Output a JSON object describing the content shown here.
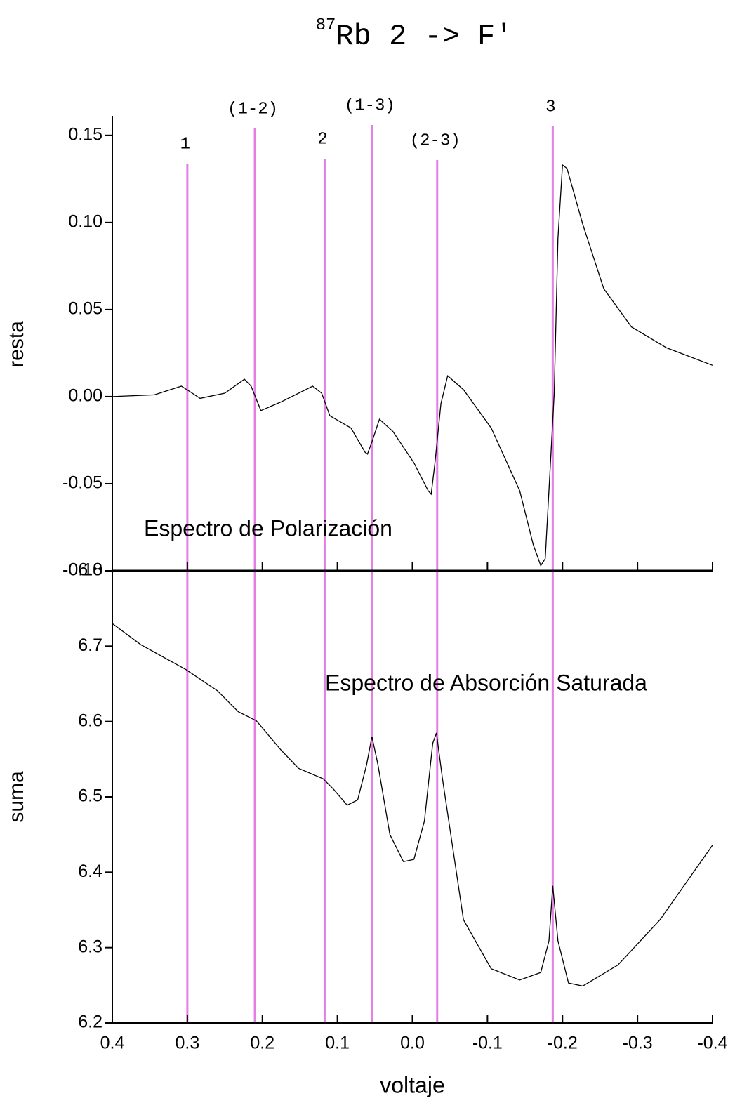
{
  "title_superscript": "87",
  "title": "Rb 2 -> F'",
  "vline_color": "#e57ee5",
  "vlines": [
    {
      "x": 0.3,
      "label": "1"
    },
    {
      "x": 0.21,
      "label": "(1-2)"
    },
    {
      "x": 0.117,
      "label": "2"
    },
    {
      "x": 0.054,
      "label": "(1-3)"
    },
    {
      "x": -0.033,
      "label": "(2-3)"
    },
    {
      "x": -0.187,
      "label": "3"
    }
  ],
  "chart_data": [
    {
      "type": "line",
      "ylabel": "resta",
      "annotation": "Espectro de Polarización",
      "color": "#000000",
      "xlim": [
        0.4,
        -0.4
      ],
      "ylim": [
        -0.1,
        0.16
      ],
      "yticks": [
        {
          "value": -0.1,
          "label": "-0.10"
        },
        -0.05,
        {
          "value": 0,
          "label": "0.00"
        },
        0.05,
        {
          "value": 0.1,
          "label": "0.10"
        },
        0.15
      ],
      "x": [
        0.4,
        0.344,
        0.308,
        0.297,
        0.283,
        0.25,
        0.224,
        0.215,
        0.202,
        0.175,
        0.133,
        0.121,
        0.11,
        0.082,
        0.063,
        0.06,
        0.054,
        0.044,
        0.026,
        -0.002,
        -0.021,
        -0.025,
        -0.03,
        -0.038,
        -0.047,
        -0.068,
        -0.105,
        -0.143,
        -0.161,
        -0.171,
        -0.177,
        -0.185,
        -0.189,
        -0.194,
        -0.2,
        -0.206,
        -0.227,
        -0.255,
        -0.292,
        -0.339,
        -0.4
      ],
      "values": [
        0.0,
        0.001,
        0.006,
        0.003,
        -0.001,
        0.002,
        0.01,
        0.006,
        -0.008,
        -0.003,
        0.006,
        0.002,
        -0.011,
        -0.018,
        -0.032,
        -0.033,
        -0.026,
        -0.013,
        -0.02,
        -0.038,
        -0.054,
        -0.056,
        -0.038,
        -0.004,
        0.012,
        0.004,
        -0.018,
        -0.054,
        -0.085,
        -0.097,
        -0.093,
        -0.03,
        0.002,
        0.091,
        0.133,
        0.131,
        0.099,
        0.062,
        0.04,
        0.028,
        0.018
      ]
    },
    {
      "type": "line",
      "ylabel": "suma",
      "xlabel": "voltaje",
      "annotation": "Espectro de Absorción Saturada",
      "color": "#000000",
      "xlim": [
        0.4,
        -0.4
      ],
      "ylim": [
        6.2,
        6.8
      ],
      "xticks": [
        0.4,
        0.3,
        0.2,
        0.1,
        {
          "value": 0,
          "label": "0.0"
        },
        -0.1,
        -0.2,
        -0.3,
        -0.4
      ],
      "yticks": [
        6.2,
        6.3,
        6.4,
        6.5,
        6.6,
        6.7,
        6.8
      ],
      "x": [
        0.4,
        0.362,
        0.302,
        0.26,
        0.232,
        0.208,
        0.175,
        0.152,
        0.119,
        0.105,
        0.087,
        0.073,
        0.061,
        0.054,
        0.046,
        0.03,
        0.012,
        -0.002,
        -0.016,
        -0.027,
        -0.032,
        -0.04,
        -0.068,
        -0.105,
        -0.143,
        -0.171,
        -0.182,
        -0.187,
        -0.194,
        -0.208,
        -0.227,
        -0.274,
        -0.33,
        -0.4
      ],
      "values": [
        6.73,
        6.702,
        6.669,
        6.641,
        6.613,
        6.601,
        6.562,
        6.538,
        6.524,
        6.51,
        6.489,
        6.496,
        6.543,
        6.58,
        6.543,
        6.45,
        6.414,
        6.417,
        6.468,
        6.571,
        6.585,
        6.524,
        6.337,
        6.272,
        6.257,
        6.267,
        6.309,
        6.382,
        6.309,
        6.253,
        6.249,
        6.277,
        6.337,
        6.436
      ]
    }
  ]
}
